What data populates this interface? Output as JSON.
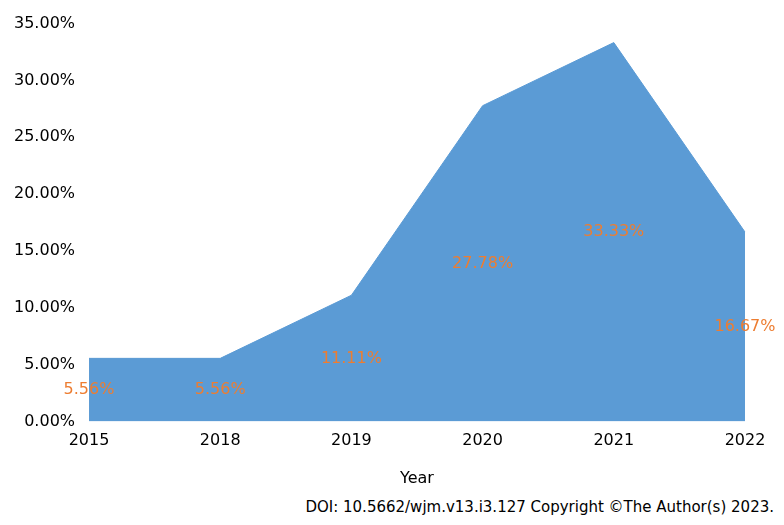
{
  "chart_data": {
    "type": "area",
    "x_label": "Year",
    "categories": [
      "2015",
      "2018",
      "2019",
      "2020",
      "2021",
      "2022"
    ],
    "values": [
      5.56,
      5.56,
      11.11,
      27.78,
      33.33,
      16.67
    ],
    "value_labels": [
      "5.56%",
      "5.56%",
      "11.11%",
      "27.78%",
      "33.33%",
      "16.67%"
    ],
    "data_labels": true,
    "color": "#5b9bd5",
    "ylim": [
      0,
      35
    ],
    "yticks": [
      {
        "value": 0,
        "label": "0.00%"
      },
      {
        "value": 5,
        "label": "5.00%"
      },
      {
        "value": 10,
        "label": "10.00%"
      },
      {
        "value": 15,
        "label": "15.00%"
      },
      {
        "value": 20,
        "label": "20.00%"
      },
      {
        "value": 25,
        "label": "25.00%"
      },
      {
        "value": 30,
        "label": "30.00%"
      },
      {
        "value": 35,
        "label": "35.00%"
      }
    ],
    "grid": false,
    "annotations": [
      "DOI: 10.5662/wjm.v13.i3.127 Copyright ©The Author(s) 2023."
    ]
  }
}
